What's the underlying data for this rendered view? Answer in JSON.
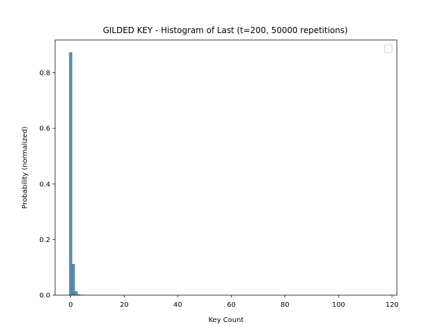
{
  "chart_data": {
    "type": "bar",
    "title": "GILDED KEY - Histogram of Last (t=200, 50000 repetitions)",
    "xlabel": "Key Count",
    "ylabel": "Probability (normalized)",
    "xlim": [
      -5.8,
      121.8
    ],
    "ylim": [
      0,
      0.918
    ],
    "xticks": [
      0,
      20,
      40,
      60,
      80,
      100,
      120
    ],
    "yticks": [
      0.0,
      0.2,
      0.4,
      0.6,
      0.8
    ],
    "bin_width": 1,
    "bins": [
      {
        "x": 0,
        "value": 0.873
      },
      {
        "x": 1,
        "value": 0.111
      },
      {
        "x": 2,
        "value": 0.013
      },
      {
        "x": 3,
        "value": 0.002
      },
      {
        "x": 4,
        "value": 0.0006
      },
      {
        "x": 5,
        "value": 0.0002
      }
    ],
    "bar_color": "#5a8fb4",
    "bar_edge_color": "#2f5f82",
    "legend": {
      "placement": "top-right",
      "entries": []
    },
    "grid": false
  }
}
